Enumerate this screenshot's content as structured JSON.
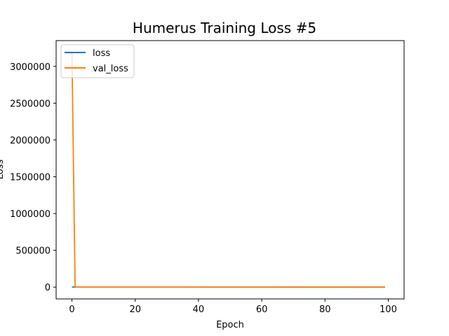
{
  "chart_data": {
    "type": "line",
    "title": "Humerus Training Loss #5",
    "xlabel": "Epoch",
    "ylabel": "Loss",
    "xlim": [
      -5,
      105
    ],
    "ylim": [
      -160000,
      3350000
    ],
    "xticks": [
      0,
      20,
      40,
      60,
      80,
      100
    ],
    "yticks": [
      0,
      500000,
      1000000,
      1500000,
      2000000,
      2500000,
      3000000
    ],
    "grid": false,
    "legend_position": "top-left",
    "x_start": 0,
    "x_end": 99,
    "series": [
      {
        "name": "loss",
        "color": "#1f77b4",
        "points": [
          [
            0,
            1500
          ],
          [
            1,
            600
          ],
          [
            2,
            300
          ],
          [
            99,
            0
          ]
        ]
      },
      {
        "name": "val_loss",
        "color": "#ff7f0e",
        "points": [
          [
            0,
            3190000
          ],
          [
            1,
            2000
          ],
          [
            2,
            500
          ],
          [
            99,
            0
          ]
        ]
      }
    ]
  }
}
